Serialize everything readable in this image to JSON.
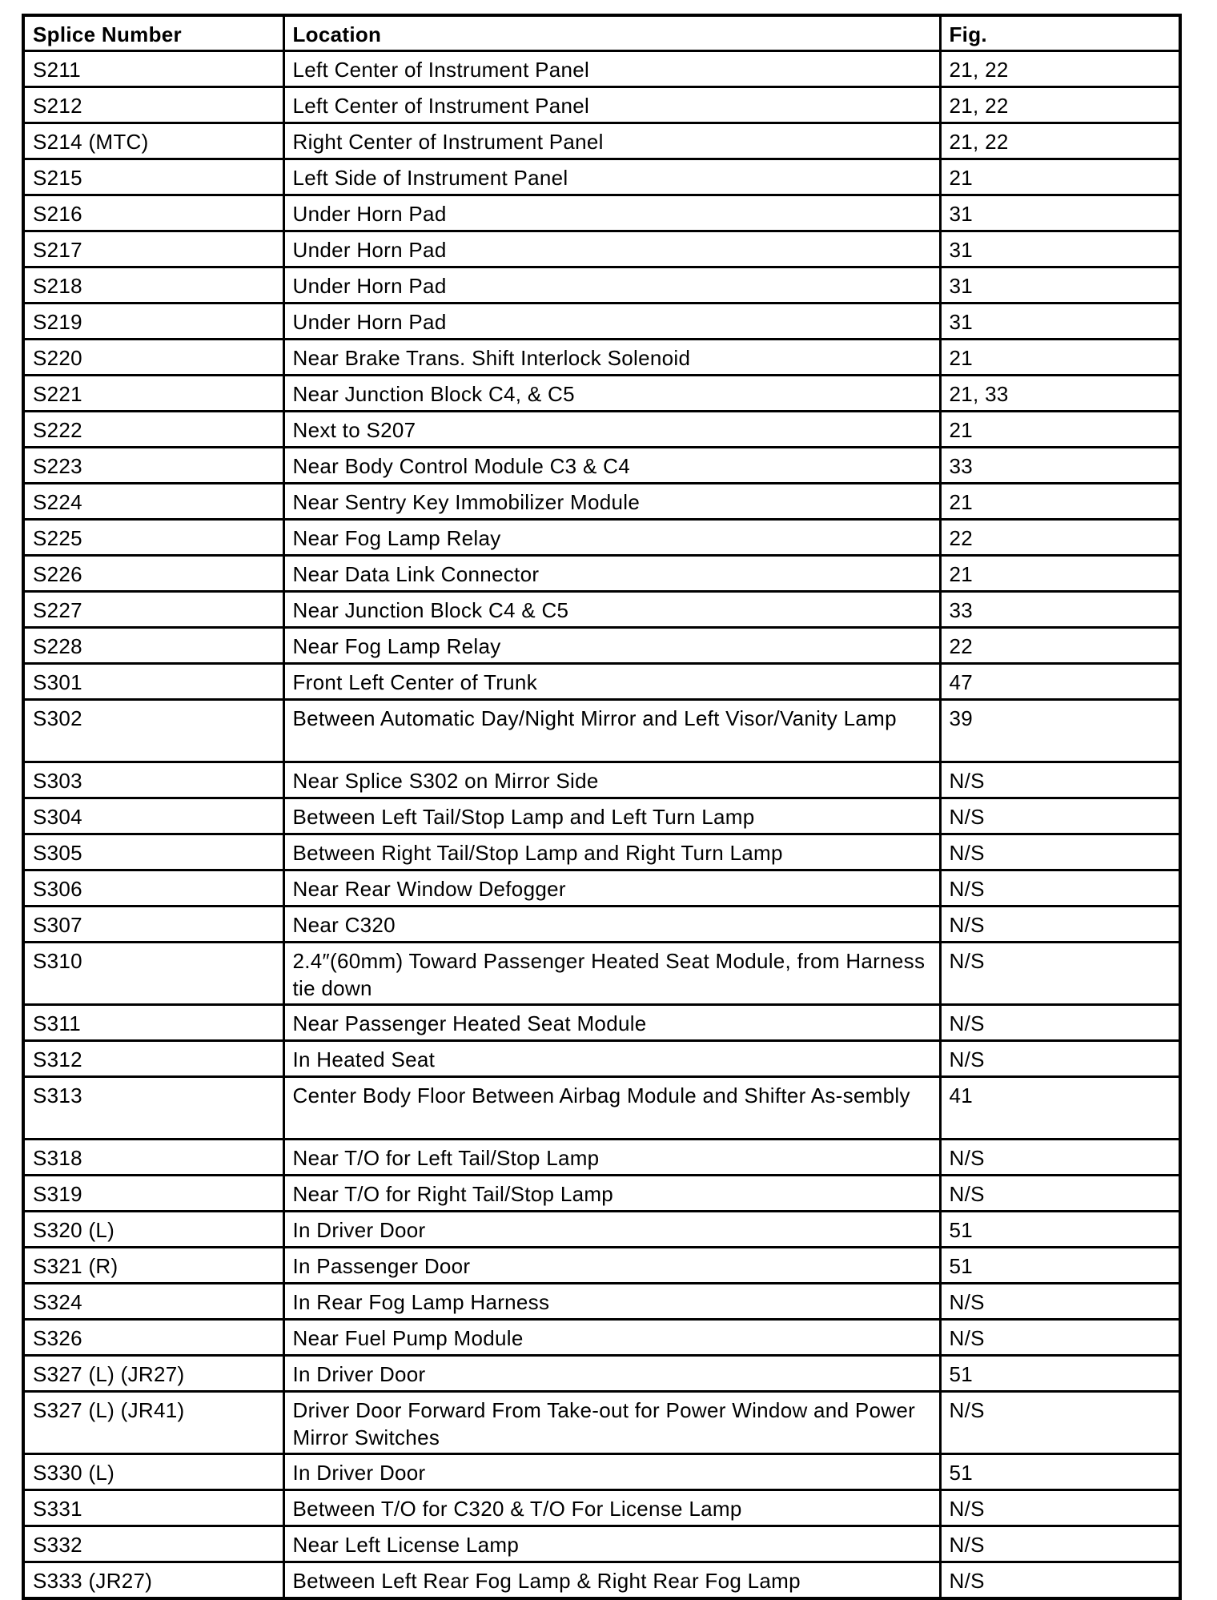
{
  "table": {
    "headers": [
      "Splice Number",
      "Location",
      "Fig."
    ],
    "rows": [
      {
        "splice": "S211",
        "location": "Left Center of Instrument Panel",
        "fig": "21, 22"
      },
      {
        "splice": "S212",
        "location": "Left Center of Instrument Panel",
        "fig": "21, 22"
      },
      {
        "splice": "S214 (MTC)",
        "location": "Right Center of Instrument Panel",
        "fig": "21, 22"
      },
      {
        "splice": "S215",
        "location": "Left Side of Instrument Panel",
        "fig": "21"
      },
      {
        "splice": "S216",
        "location": "Under Horn Pad",
        "fig": "31"
      },
      {
        "splice": "S217",
        "location": "Under Horn Pad",
        "fig": "31"
      },
      {
        "splice": "S218",
        "location": "Under Horn Pad",
        "fig": "31"
      },
      {
        "splice": "S219",
        "location": "Under Horn Pad",
        "fig": "31"
      },
      {
        "splice": "S220",
        "location": "Near Brake Trans. Shift Interlock Solenoid",
        "fig": "21"
      },
      {
        "splice": "S221",
        "location": "Near Junction Block C4, & C5",
        "fig": "21, 33"
      },
      {
        "splice": "S222",
        "location": "Next to S207",
        "fig": "21"
      },
      {
        "splice": "S223",
        "location": "Near Body Control Module C3 & C4",
        "fig": "33"
      },
      {
        "splice": "S224",
        "location": "Near Sentry Key Immobilizer Module",
        "fig": "21"
      },
      {
        "splice": "S225",
        "location": "Near Fog Lamp Relay",
        "fig": "22"
      },
      {
        "splice": "S226",
        "location": "Near Data Link Connector",
        "fig": "21"
      },
      {
        "splice": "S227",
        "location": "Near Junction Block C4 & C5",
        "fig": "33"
      },
      {
        "splice": "S228",
        "location": "Near Fog Lamp Relay",
        "fig": "22"
      },
      {
        "splice": "S301",
        "location": "Front Left Center of Trunk",
        "fig": "47"
      },
      {
        "splice": "S302",
        "location": "Between Automatic Day/Night Mirror and Left Visor/Vanity Lamp",
        "fig": "39",
        "double": true
      },
      {
        "splice": "S303",
        "location": "Near Splice S302 on Mirror Side",
        "fig": "N/S"
      },
      {
        "splice": "S304",
        "location": "Between Left Tail/Stop Lamp and Left Turn Lamp",
        "fig": "N/S"
      },
      {
        "splice": "S305",
        "location": "Between Right Tail/Stop Lamp and Right Turn Lamp",
        "fig": "N/S"
      },
      {
        "splice": "S306",
        "location": "Near Rear Window Defogger",
        "fig": "N/S"
      },
      {
        "splice": "S307",
        "location": "Near C320",
        "fig": "N/S"
      },
      {
        "splice": "S310",
        "location": "2.4″(60mm) Toward Passenger Heated Seat Module, from Harness tie down",
        "fig": "N/S",
        "double": true
      },
      {
        "splice": "S311",
        "location": "Near Passenger Heated Seat Module",
        "fig": "N/S"
      },
      {
        "splice": "S312",
        "location": "In Heated Seat",
        "fig": "N/S"
      },
      {
        "splice": "S313",
        "location": "Center Body Floor Between Airbag Module and Shifter As-sembly",
        "fig": "41",
        "double": true
      },
      {
        "splice": "S318",
        "location": "Near T/O for Left Tail/Stop Lamp",
        "fig": "N/S"
      },
      {
        "splice": "S319",
        "location": "Near T/O for Right Tail/Stop Lamp",
        "fig": "N/S"
      },
      {
        "splice": "S320 (L)",
        "location": "In Driver Door",
        "fig": "51"
      },
      {
        "splice": "S321 (R)",
        "location": "In Passenger Door",
        "fig": "51"
      },
      {
        "splice": "S324",
        "location": "In Rear Fog Lamp Harness",
        "fig": "N/S"
      },
      {
        "splice": "S326",
        "location": "Near Fuel Pump Module",
        "fig": "N/S"
      },
      {
        "splice": "S327 (L) (JR27)",
        "location": "In Driver Door",
        "fig": "51"
      },
      {
        "splice": "S327 (L) (JR41)",
        "location": "Driver Door Forward From Take-out for Power Window and Power Mirror Switches",
        "fig": "N/S",
        "double": true
      },
      {
        "splice": "S330 (L)",
        "location": "In Driver Door",
        "fig": "51"
      },
      {
        "splice": "S331",
        "location": "Between T/O for C320 & T/O For License Lamp",
        "fig": "N/S"
      },
      {
        "splice": "S332",
        "location": "Near Left License Lamp",
        "fig": "N/S"
      },
      {
        "splice": "S333 (JR27)",
        "location": "Between Left Rear Fog Lamp & Right Rear Fog Lamp",
        "fig": "N/S"
      }
    ]
  }
}
